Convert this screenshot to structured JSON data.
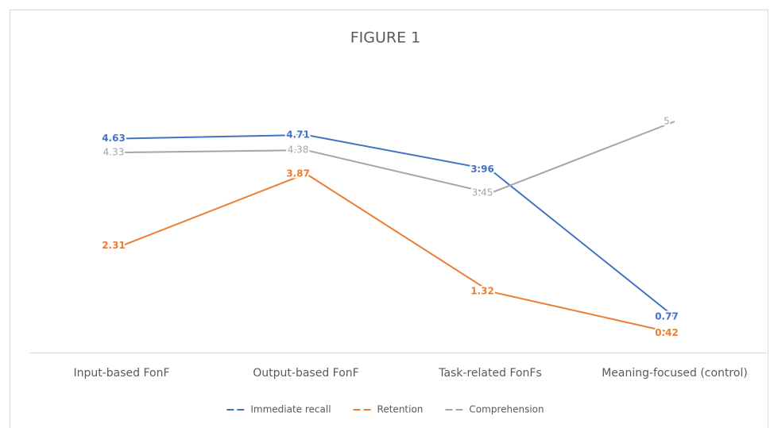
{
  "chart_data": {
    "type": "line",
    "title": "FIGURE 1",
    "categories": [
      "Input-based FonF",
      "Output-based FonF",
      "Task-related FonFs",
      "Meaning-focused (control)"
    ],
    "series": [
      {
        "name": "Immediate recall",
        "color": "#4472c4",
        "values": [
          4.63,
          4.71,
          3.96,
          0.77
        ]
      },
      {
        "name": "Retention",
        "color": "#ed7d31",
        "values": [
          2.31,
          3.87,
          1.32,
          0.42
        ]
      },
      {
        "name": "Comprehension",
        "color": "#a5a5a5",
        "values": [
          4.33,
          4.38,
          3.45,
          5
        ]
      }
    ],
    "legend": "bottom"
  }
}
